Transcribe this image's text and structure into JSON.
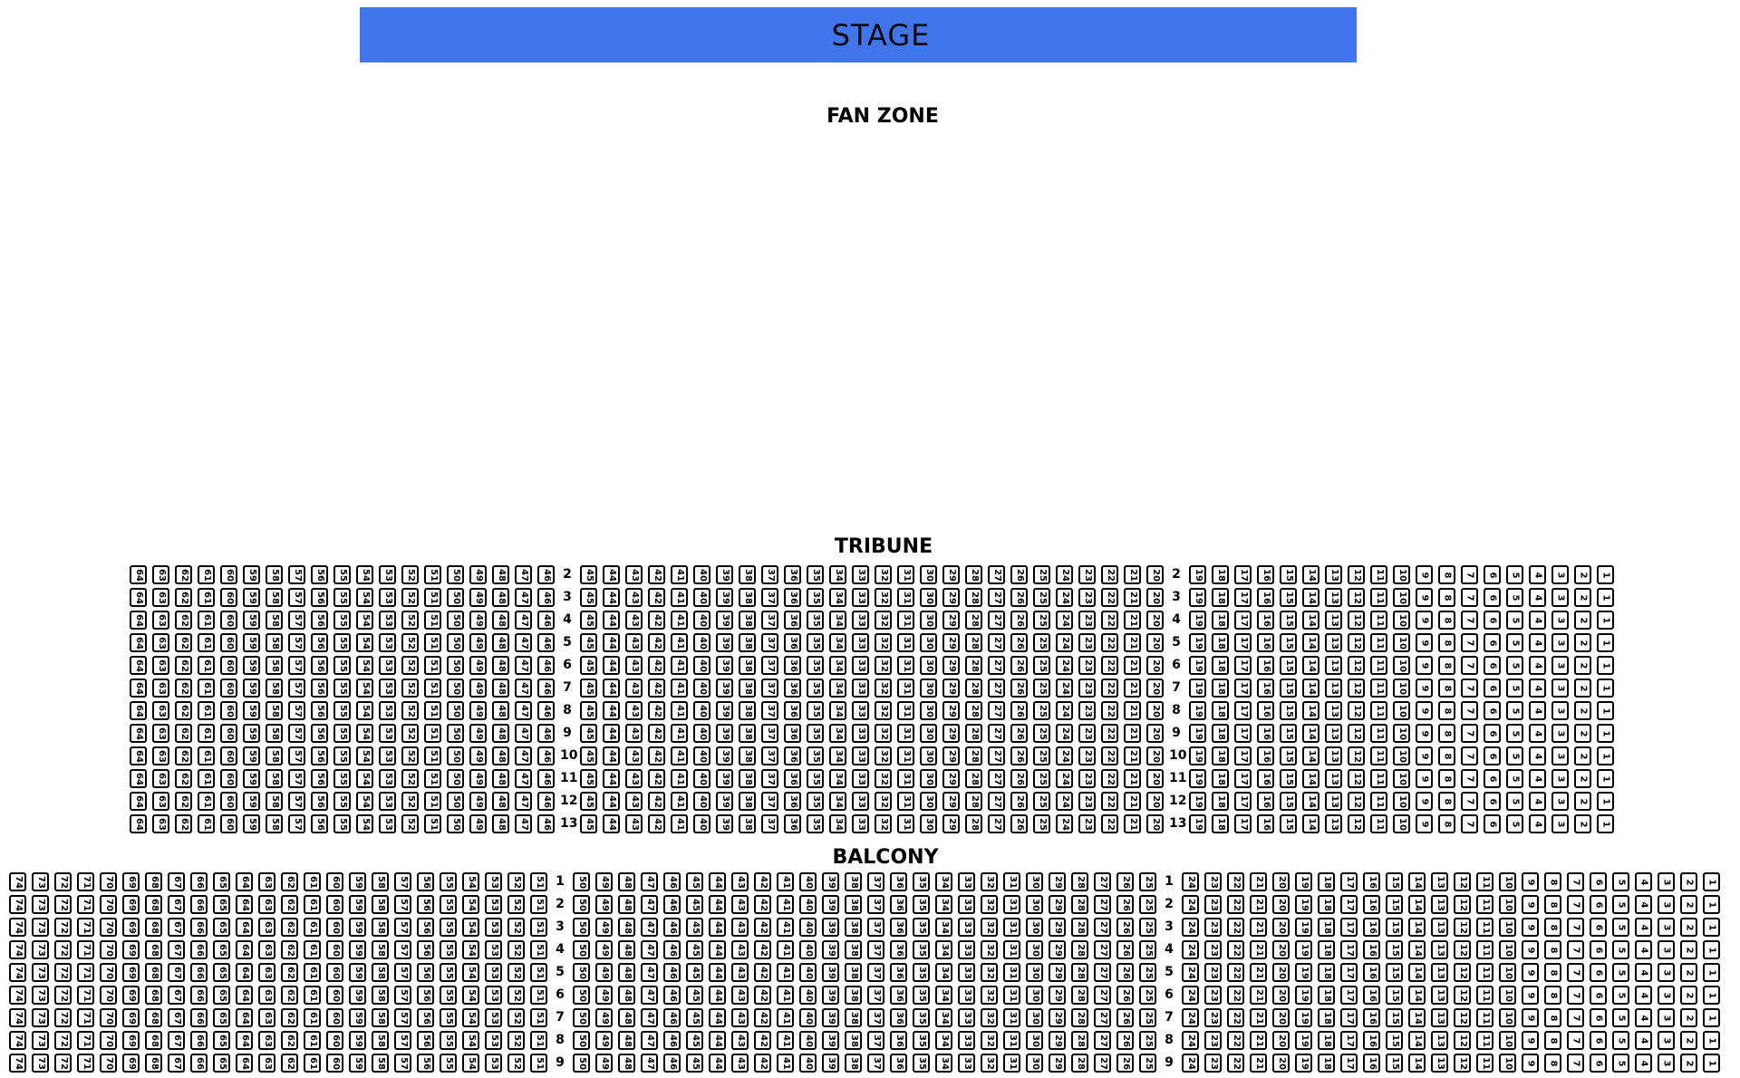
{
  "stage": {
    "label": "STAGE",
    "color": "#4274EB",
    "text_color": "#0a0a0a"
  },
  "sections": {
    "fan_zone": {
      "label": "FAN ZONE"
    },
    "tribune": {
      "label": "TRIBUNE",
      "rows": [
        2,
        3,
        4,
        5,
        6,
        7,
        8,
        9,
        10,
        11,
        12,
        13
      ],
      "blocks": [
        [
          64,
          63,
          62,
          61,
          60,
          59,
          58,
          57,
          56,
          55,
          54,
          53,
          52,
          51,
          50,
          49,
          48,
          47,
          46
        ],
        [
          45,
          44,
          43,
          42,
          41,
          40,
          39,
          38,
          37,
          36,
          35,
          34,
          33,
          32,
          31,
          30,
          29,
          28,
          27,
          26,
          25,
          24,
          23,
          22,
          21,
          20
        ],
        [
          19,
          18,
          17,
          16,
          15,
          14,
          13,
          12,
          11,
          10,
          9,
          8,
          7,
          6,
          5,
          4,
          3,
          2,
          1
        ]
      ]
    },
    "balcony": {
      "label": "BALCONY",
      "rows": [
        1,
        2,
        3,
        4,
        5,
        6,
        7,
        8,
        9
      ],
      "blocks": [
        [
          74,
          73,
          72,
          71,
          70,
          69,
          68,
          67,
          66,
          65,
          64,
          63,
          62,
          61,
          60,
          59,
          58,
          57,
          56,
          55,
          54,
          53,
          52,
          51
        ],
        [
          50,
          49,
          48,
          47,
          46,
          45,
          44,
          43,
          42,
          41,
          40,
          39,
          38,
          37,
          36,
          35,
          34,
          33,
          32,
          31,
          30,
          29,
          28,
          27,
          26,
          25
        ],
        [
          24,
          23,
          22,
          21,
          20,
          19,
          18,
          17,
          16,
          15,
          14,
          13,
          12,
          11,
          10,
          9,
          8,
          7,
          6,
          5,
          4,
          3,
          2,
          1
        ]
      ]
    }
  },
  "seat_style": {
    "border_color": "#000000",
    "fill_color": "#ffffff"
  }
}
